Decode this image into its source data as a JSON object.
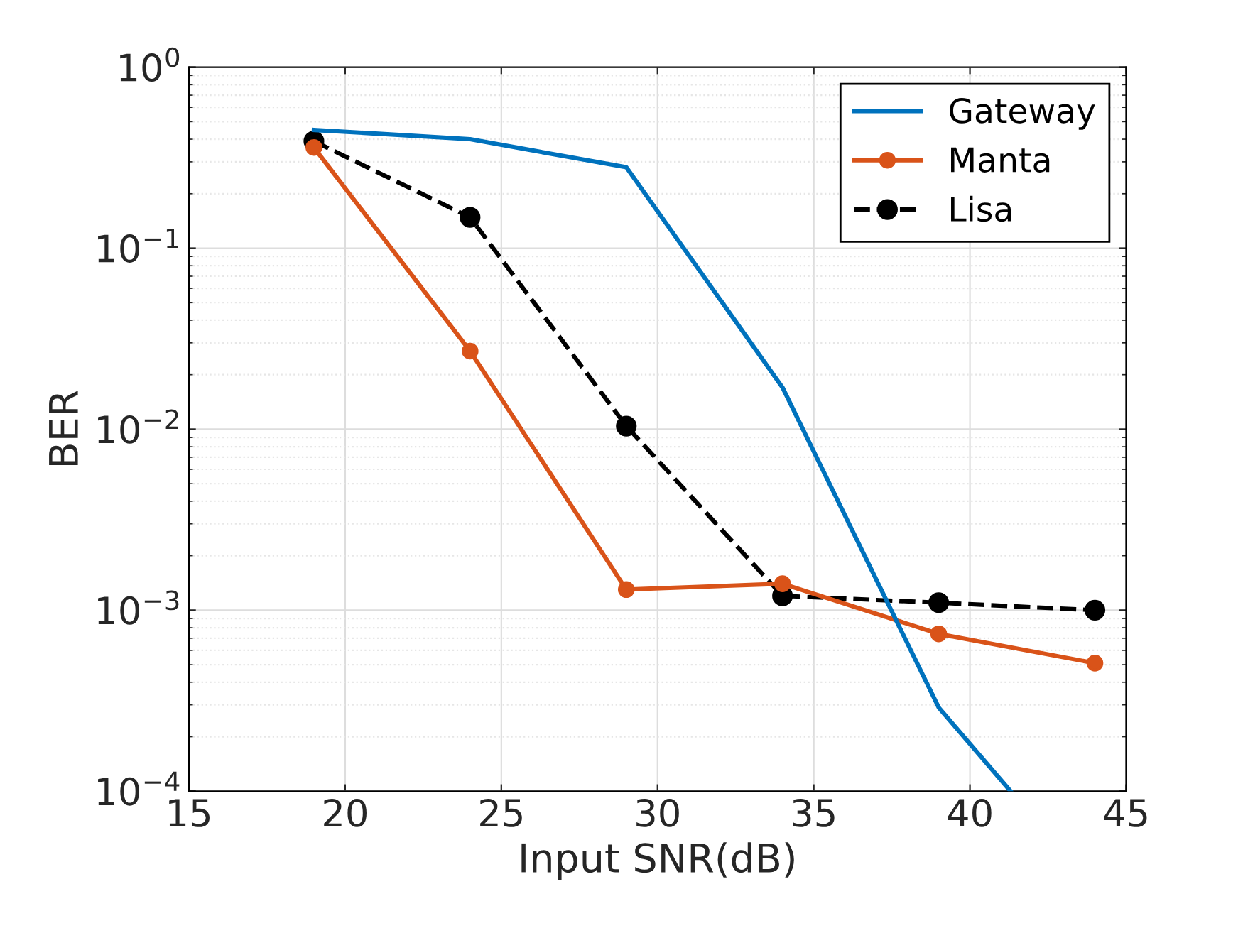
{
  "chart_data": {
    "type": "line",
    "xlabel": "Input SNR(dB)",
    "ylabel": "BER",
    "log": "y",
    "x": [
      19,
      24,
      29,
      34,
      39,
      44
    ],
    "series": [
      {
        "name": "Gateway",
        "color": "#0072bd",
        "x": [
          19,
          24,
          29,
          34,
          39,
          41.3
        ],
        "values": [
          0.45,
          0.4,
          0.28,
          0.017,
          0.00029,
          0.0001
        ],
        "marker": "none",
        "line_style": "solid"
      },
      {
        "name": "Manta",
        "color": "#d95319",
        "values": [
          0.36,
          0.027,
          0.0013,
          0.0014,
          0.00074,
          0.00051
        ],
        "marker": "circle",
        "line_style": "solid"
      },
      {
        "name": "Lisa",
        "color": "#000000",
        "values": [
          0.39,
          0.148,
          0.0104,
          0.0012,
          0.0011,
          0.001
        ],
        "marker": "circle",
        "line_style": "dashed"
      }
    ],
    "xlim": [
      15,
      45
    ],
    "xticks": [
      15,
      20,
      25,
      30,
      35,
      40,
      45
    ],
    "ylim": [
      0.0001,
      1
    ],
    "yticks": [
      {
        "value": 0.0001,
        "label": "10$^{−4}$"
      },
      {
        "value": 0.001,
        "label": "10$^{−3}$"
      },
      {
        "value": 0.01,
        "label": "10$^{−2}$"
      },
      {
        "value": 0.1,
        "label": "10$^{−1}$"
      },
      {
        "value": 1,
        "label": "10$^{0}$"
      }
    ],
    "grid": true,
    "legend": "top right"
  }
}
